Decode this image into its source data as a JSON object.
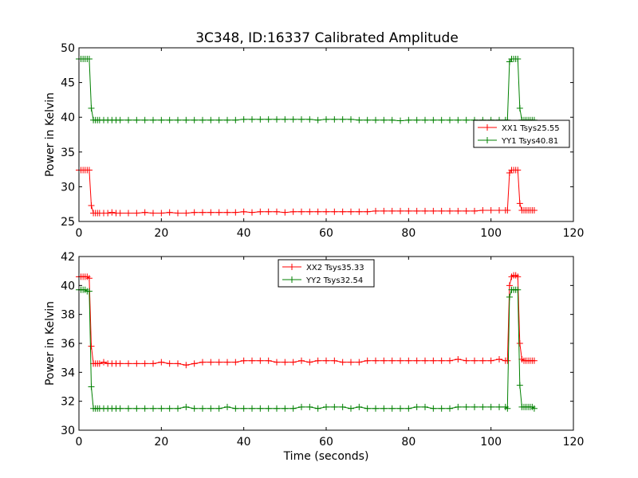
{
  "title": "3C348, ID:16337 Calibrated Amplitude",
  "chart_data": [
    {
      "type": "line",
      "title": "3C348, ID:16337 Calibrated Amplitude",
      "xlabel": "",
      "ylabel": "Power in Kelvin",
      "xlim": [
        0,
        120
      ],
      "ylim": [
        25,
        50
      ],
      "xticks": [
        0,
        20,
        40,
        60,
        80,
        100,
        120
      ],
      "yticks": [
        25,
        30,
        35,
        40,
        45,
        50
      ],
      "legend_position": "center-right",
      "grid": false,
      "series": [
        {
          "name": "XX1 Tsys25.55",
          "color": "#ff0000",
          "marker": "+",
          "x": [
            0.0,
            0.5,
            1.0,
            1.5,
            2.0,
            2.5,
            3.0,
            3.5,
            4.0,
            4.5,
            5.0,
            6.0,
            7.0,
            8.0,
            9.0,
            10.0,
            12.0,
            14.0,
            16.0,
            18.0,
            20.0,
            22.0,
            24.0,
            26.0,
            28.0,
            30.0,
            32.0,
            34.0,
            36.0,
            38.0,
            40.0,
            42.0,
            44.0,
            46.0,
            48.0,
            50.0,
            52.0,
            54.0,
            56.0,
            58.0,
            60.0,
            62.0,
            64.0,
            66.0,
            68.0,
            70.0,
            72.0,
            74.0,
            76.0,
            78.0,
            80.0,
            82.0,
            84.0,
            86.0,
            88.0,
            90.0,
            92.0,
            94.0,
            96.0,
            98.0,
            100.0,
            102.0,
            103.5,
            104.0,
            104.5,
            105.0,
            105.5,
            106.0,
            106.5,
            107.0,
            107.5,
            108.0,
            108.5,
            109.0,
            109.5,
            110.0,
            110.5
          ],
          "y": [
            32.4,
            32.4,
            32.4,
            32.4,
            32.4,
            32.4,
            27.3,
            26.2,
            26.2,
            26.2,
            26.2,
            26.2,
            26.2,
            26.3,
            26.2,
            26.2,
            26.2,
            26.2,
            26.3,
            26.2,
            26.2,
            26.3,
            26.2,
            26.2,
            26.3,
            26.3,
            26.3,
            26.3,
            26.3,
            26.3,
            26.4,
            26.3,
            26.4,
            26.4,
            26.4,
            26.3,
            26.4,
            26.4,
            26.4,
            26.4,
            26.4,
            26.4,
            26.4,
            26.4,
            26.4,
            26.4,
            26.5,
            26.5,
            26.5,
            26.5,
            26.5,
            26.5,
            26.5,
            26.5,
            26.5,
            26.5,
            26.5,
            26.5,
            26.5,
            26.6,
            26.6,
            26.6,
            26.6,
            26.6,
            32.0,
            32.4,
            32.4,
            32.4,
            32.4,
            27.6,
            26.6,
            26.6,
            26.6,
            26.6,
            26.6,
            26.6,
            26.6
          ]
        },
        {
          "name": "YY1 Tsys40.81",
          "color": "#008000",
          "marker": "+",
          "x": [
            0.0,
            0.5,
            1.0,
            1.5,
            2.0,
            2.5,
            3.0,
            3.5,
            4.0,
            4.5,
            5.0,
            6.0,
            7.0,
            8.0,
            9.0,
            10.0,
            12.0,
            14.0,
            16.0,
            18.0,
            20.0,
            22.0,
            24.0,
            26.0,
            28.0,
            30.0,
            32.0,
            34.0,
            36.0,
            38.0,
            40.0,
            42.0,
            44.0,
            46.0,
            48.0,
            50.0,
            52.0,
            54.0,
            56.0,
            58.0,
            60.0,
            62.0,
            64.0,
            66.0,
            68.0,
            70.0,
            72.0,
            74.0,
            76.0,
            78.0,
            80.0,
            82.0,
            84.0,
            86.0,
            88.0,
            90.0,
            92.0,
            94.0,
            96.0,
            98.0,
            100.0,
            102.0,
            103.5,
            104.0,
            104.5,
            105.0,
            105.5,
            106.0,
            106.5,
            107.0,
            107.5,
            108.0,
            108.5,
            109.0,
            109.5,
            110.0,
            110.5
          ],
          "y": [
            48.4,
            48.4,
            48.4,
            48.4,
            48.4,
            48.4,
            41.3,
            39.6,
            39.6,
            39.6,
            39.6,
            39.6,
            39.6,
            39.6,
            39.6,
            39.6,
            39.6,
            39.6,
            39.6,
            39.6,
            39.6,
            39.6,
            39.6,
            39.6,
            39.6,
            39.6,
            39.6,
            39.6,
            39.6,
            39.6,
            39.7,
            39.7,
            39.7,
            39.7,
            39.7,
            39.7,
            39.7,
            39.7,
            39.7,
            39.6,
            39.7,
            39.7,
            39.7,
            39.7,
            39.6,
            39.6,
            39.6,
            39.6,
            39.6,
            39.5,
            39.6,
            39.6,
            39.6,
            39.6,
            39.6,
            39.6,
            39.6,
            39.6,
            39.6,
            39.6,
            39.6,
            39.6,
            39.6,
            39.6,
            48.0,
            48.4,
            48.4,
            48.4,
            48.4,
            41.3,
            39.6,
            39.6,
            39.6,
            39.6,
            39.6,
            39.6,
            39.6
          ]
        }
      ]
    },
    {
      "type": "line",
      "title": "",
      "xlabel": "Time (seconds)",
      "ylabel": "Power in Kelvin",
      "xlim": [
        0,
        120
      ],
      "ylim": [
        30,
        42
      ],
      "xticks": [
        0,
        20,
        40,
        60,
        80,
        100,
        120
      ],
      "yticks": [
        30,
        32,
        34,
        36,
        38,
        40,
        42
      ],
      "legend_position": "upper-center",
      "grid": false,
      "series": [
        {
          "name": "XX2 Tsys35.33",
          "color": "#ff0000",
          "marker": "+",
          "x": [
            0.0,
            0.5,
            1.0,
            1.5,
            2.0,
            2.5,
            3.0,
            3.5,
            4.0,
            4.5,
            5.0,
            6.0,
            7.0,
            8.0,
            9.0,
            10.0,
            12.0,
            14.0,
            16.0,
            18.0,
            20.0,
            22.0,
            24.0,
            26.0,
            28.0,
            30.0,
            32.0,
            34.0,
            36.0,
            38.0,
            40.0,
            42.0,
            44.0,
            46.0,
            48.0,
            50.0,
            52.0,
            54.0,
            56.0,
            58.0,
            60.0,
            62.0,
            64.0,
            66.0,
            68.0,
            70.0,
            72.0,
            74.0,
            76.0,
            78.0,
            80.0,
            82.0,
            84.0,
            86.0,
            88.0,
            90.0,
            92.0,
            94.0,
            96.0,
            98.0,
            100.0,
            102.0,
            103.5,
            104.0,
            104.5,
            105.0,
            105.5,
            106.0,
            106.5,
            107.0,
            107.5,
            108.0,
            108.5,
            109.0,
            109.5,
            110.0,
            110.5
          ],
          "y": [
            40.6,
            40.6,
            40.6,
            40.6,
            40.6,
            40.5,
            35.8,
            34.6,
            34.6,
            34.6,
            34.6,
            34.7,
            34.6,
            34.6,
            34.6,
            34.6,
            34.6,
            34.6,
            34.6,
            34.6,
            34.7,
            34.6,
            34.6,
            34.5,
            34.6,
            34.7,
            34.7,
            34.7,
            34.7,
            34.7,
            34.8,
            34.8,
            34.8,
            34.8,
            34.7,
            34.7,
            34.7,
            34.8,
            34.7,
            34.8,
            34.8,
            34.8,
            34.7,
            34.7,
            34.7,
            34.8,
            34.8,
            34.8,
            34.8,
            34.8,
            34.8,
            34.8,
            34.8,
            34.8,
            34.8,
            34.8,
            34.9,
            34.8,
            34.8,
            34.8,
            34.8,
            34.9,
            34.8,
            34.8,
            40.0,
            40.6,
            40.7,
            40.7,
            40.6,
            36.0,
            34.9,
            34.8,
            34.8,
            34.8,
            34.8,
            34.8,
            34.8
          ]
        },
        {
          "name": "YY2 Tsys32.54",
          "color": "#008000",
          "marker": "+",
          "x": [
            0.0,
            0.5,
            1.0,
            1.5,
            2.0,
            2.5,
            3.0,
            3.5,
            4.0,
            4.5,
            5.0,
            6.0,
            7.0,
            8.0,
            9.0,
            10.0,
            12.0,
            14.0,
            16.0,
            18.0,
            20.0,
            22.0,
            24.0,
            26.0,
            28.0,
            30.0,
            32.0,
            34.0,
            36.0,
            38.0,
            40.0,
            42.0,
            44.0,
            46.0,
            48.0,
            50.0,
            52.0,
            54.0,
            56.0,
            58.0,
            60.0,
            62.0,
            64.0,
            66.0,
            68.0,
            70.0,
            72.0,
            74.0,
            76.0,
            78.0,
            80.0,
            82.0,
            84.0,
            86.0,
            88.0,
            90.0,
            92.0,
            94.0,
            96.0,
            98.0,
            100.0,
            102.0,
            103.5,
            104.0,
            104.5,
            105.0,
            105.5,
            106.0,
            106.5,
            107.0,
            107.5,
            108.0,
            108.5,
            109.0,
            109.5,
            110.0,
            110.5
          ],
          "y": [
            39.7,
            39.7,
            39.7,
            39.7,
            39.6,
            39.6,
            33.0,
            31.5,
            31.5,
            31.5,
            31.5,
            31.5,
            31.5,
            31.5,
            31.5,
            31.5,
            31.5,
            31.5,
            31.5,
            31.5,
            31.5,
            31.5,
            31.5,
            31.6,
            31.5,
            31.5,
            31.5,
            31.5,
            31.6,
            31.5,
            31.5,
            31.5,
            31.5,
            31.5,
            31.5,
            31.5,
            31.5,
            31.6,
            31.6,
            31.5,
            31.6,
            31.6,
            31.6,
            31.5,
            31.6,
            31.5,
            31.5,
            31.5,
            31.5,
            31.5,
            31.5,
            31.6,
            31.6,
            31.5,
            31.5,
            31.5,
            31.6,
            31.6,
            31.6,
            31.6,
            31.6,
            31.6,
            31.6,
            31.5,
            39.2,
            39.7,
            39.7,
            39.7,
            39.7,
            33.1,
            31.6,
            31.6,
            31.6,
            31.6,
            31.6,
            31.6,
            31.5
          ]
        }
      ]
    }
  ]
}
